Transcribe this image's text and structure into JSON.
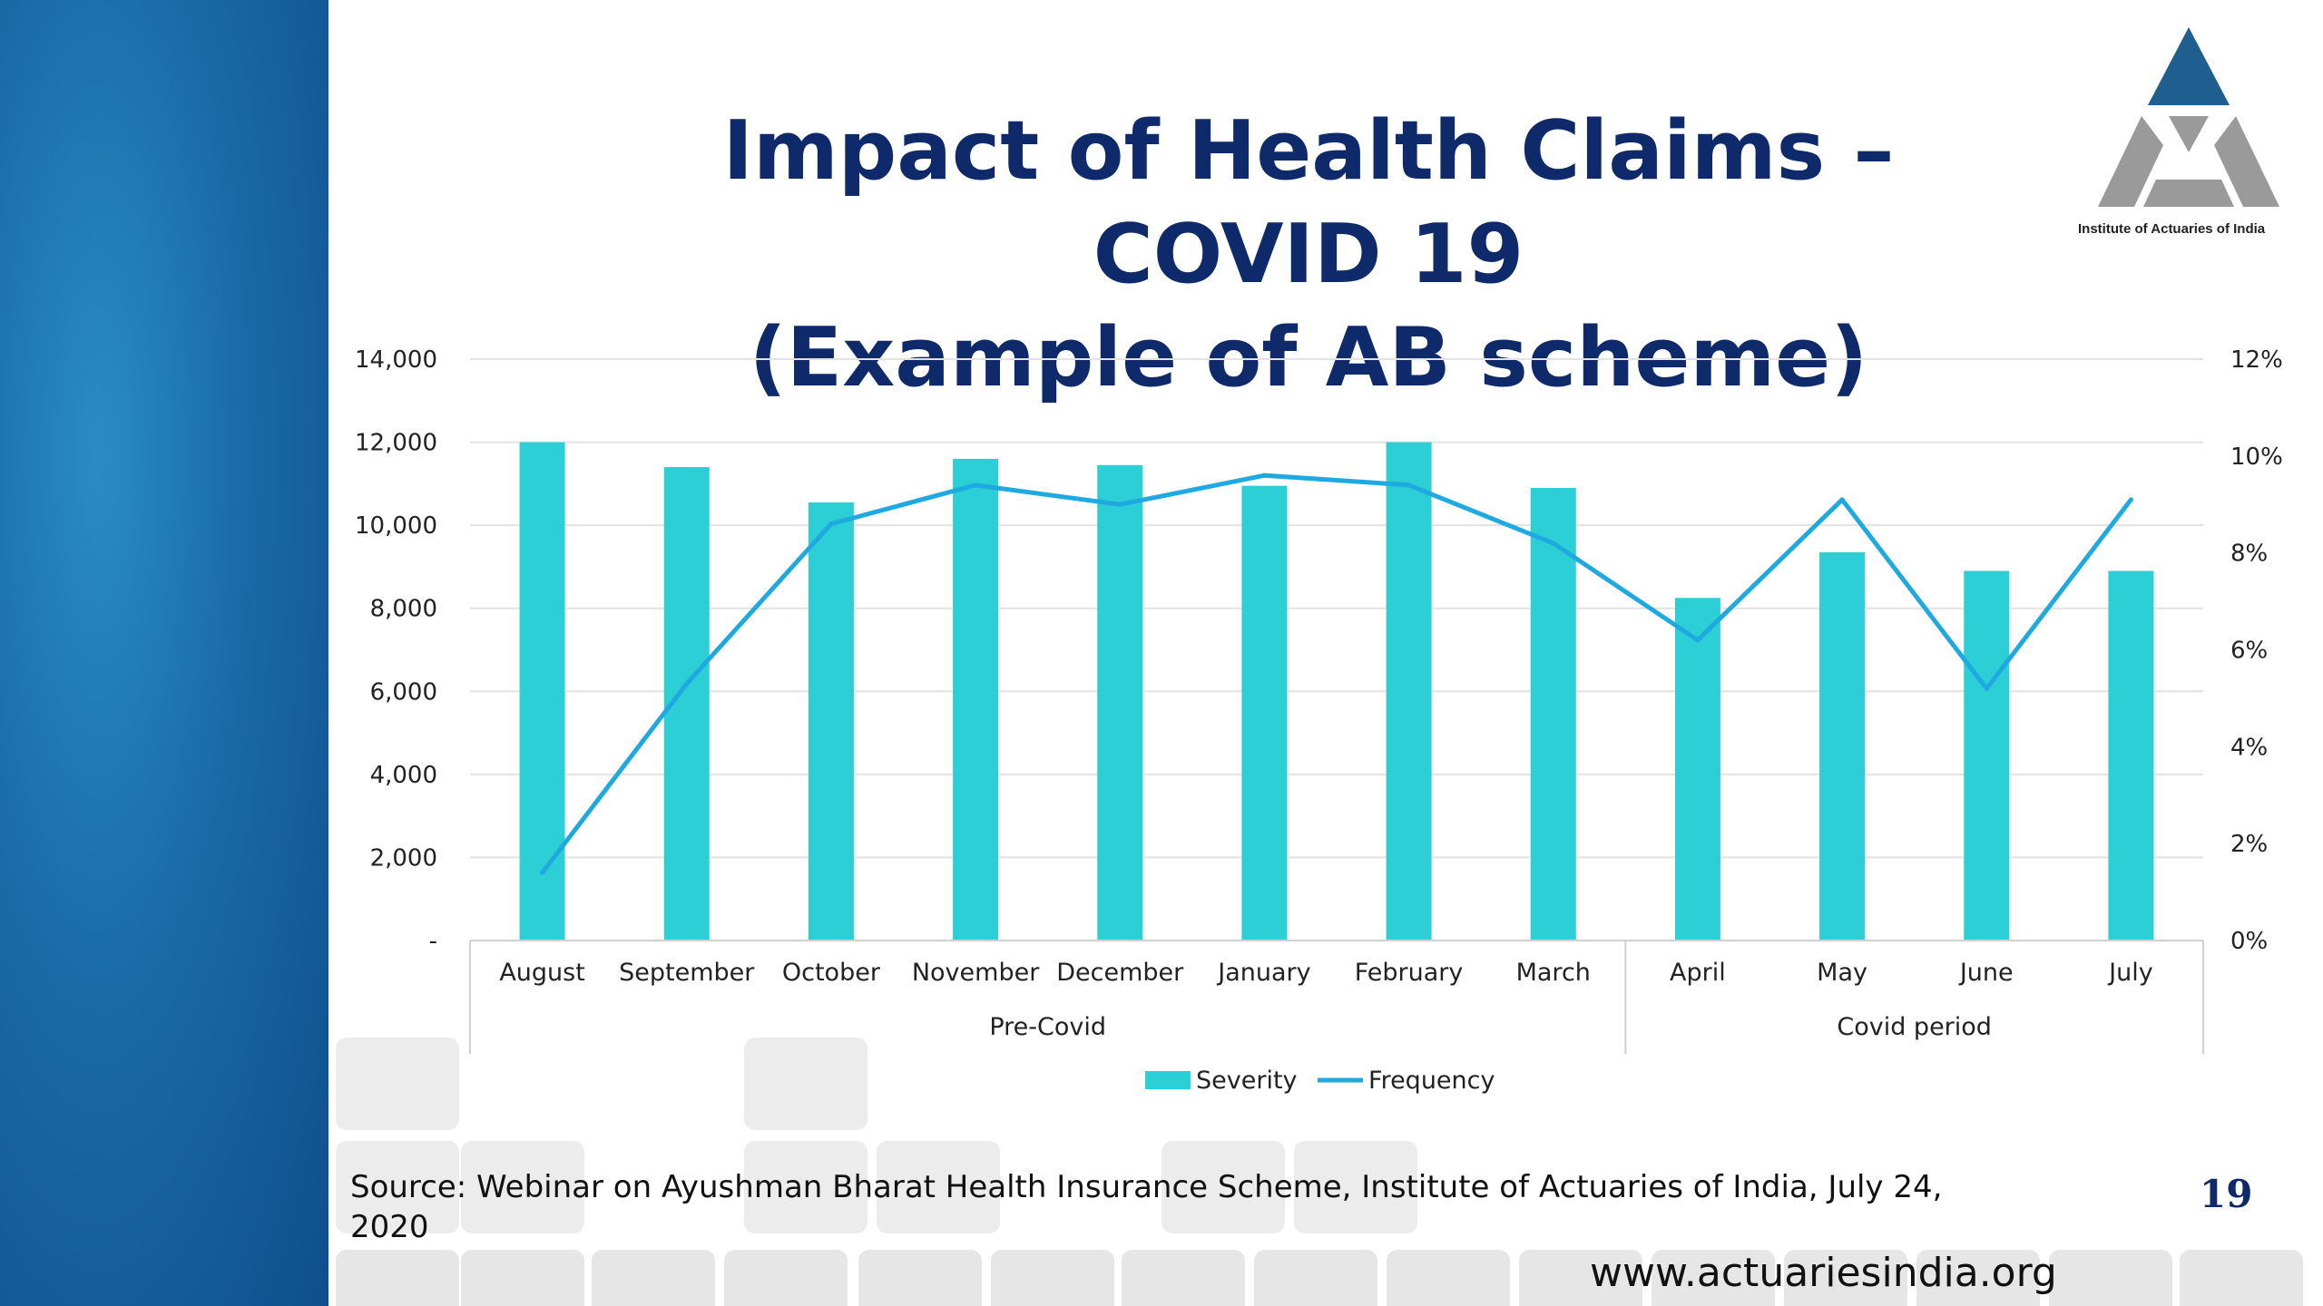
{
  "slide": {
    "title_line1": "Impact of Health Claims – COVID 19",
    "title_line2": "(Example of AB scheme)",
    "logo_caption": "Institute of Actuaries of India",
    "source": "Source: Webinar on Ayushman Bharat Health Insurance Scheme, Institute of Actuaries of India, July 24, 2020",
    "page_number": "19",
    "website": "www.actuariesindia.org"
  },
  "colors": {
    "title": "#0f2a6b",
    "left_band": "#1a6aa8",
    "severity": "#2ccfd6",
    "frequency": "#1fa9e1",
    "logo_blue": "#1f5f8f",
    "logo_grey": "#9a9a9a"
  },
  "chart_data": {
    "type": "bar",
    "categories": [
      "August",
      "September",
      "October",
      "November",
      "December",
      "January",
      "February",
      "March",
      "April",
      "May",
      "June",
      "July"
    ],
    "groups": [
      {
        "label": "Pre-Covid",
        "count": 8
      },
      {
        "label": "Covid period",
        "count": 4
      }
    ],
    "series": [
      {
        "name": "Severity",
        "kind": "bar",
        "axis": "left",
        "values": [
          12000,
          11400,
          10550,
          11600,
          11450,
          10950,
          12000,
          10900,
          8250,
          9350,
          8900,
          8900
        ]
      },
      {
        "name": "Frequency",
        "kind": "line",
        "axis": "right",
        "values": [
          0.014,
          0.053,
          0.086,
          0.094,
          0.09,
          0.096,
          0.094,
          0.082,
          0.062,
          0.091,
          0.052,
          0.091
        ]
      }
    ],
    "y_left": {
      "min": 0,
      "max": 14000,
      "ticks": [
        "-",
        "2,000",
        "4,000",
        "6,000",
        "8,000",
        "10,000",
        "12,000",
        "14,000"
      ]
    },
    "y_right": {
      "min": 0,
      "max": 0.12,
      "ticks": [
        "0%",
        "2%",
        "4%",
        "6%",
        "8%",
        "10%",
        "12%"
      ]
    },
    "grid": true,
    "legend_position": "bottom"
  }
}
